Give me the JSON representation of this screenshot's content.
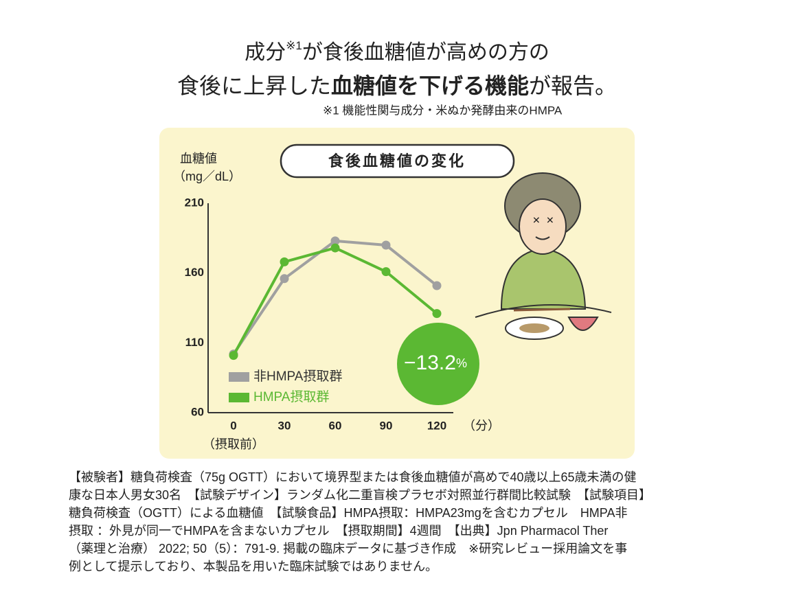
{
  "header": {
    "title_line1": [
      "成分",
      "※1",
      "が食後血糖値が高めの方の"
    ],
    "title_line2": [
      "食後に上昇した",
      "血糖値を下げる機能",
      "が報告。"
    ],
    "footnote": "※1 機能性関与成分・米ぬか発酵由来のHMPA"
  },
  "chart_data": {
    "type": "line",
    "title": "食後血糖値の変化",
    "y_label": [
      "血糖値",
      "（mg／dL）"
    ],
    "x_unit": "（分）",
    "x_sublabel": "（摂取前）",
    "x": [
      0,
      30,
      60,
      90,
      120
    ],
    "series": [
      {
        "name": "非HMPA摂取群",
        "color": "#a0a0a0",
        "values": [
          102,
          156,
          183,
          180,
          151
        ]
      },
      {
        "name": "HMPA摂取群",
        "color": "#5bb833",
        "values": [
          101,
          168,
          178,
          161,
          131
        ]
      }
    ],
    "xlim": [
      -15,
      135
    ],
    "ylim": [
      60,
      210
    ],
    "xticks": [
      0,
      30,
      60,
      90,
      120
    ],
    "yticks": [
      60,
      110,
      160,
      210
    ],
    "grid": false,
    "legend": "lower left",
    "annotation": {
      "text": "−13.2",
      "unit": "%",
      "color": "#5bb833"
    }
  },
  "notes": [
    "【被験者】糖負荷検査（75g OGTT）において境界型または食後血糖値が高めで40歳以上65歳未満の健",
    "康な日本人男女30名　【試験デザイン】ランダム化二重盲検プラセボ対照並行群間比較試験　【試験項目】",
    "糖負荷検査（OGTT）による血糖値　【試験食品】HMPA摂取：HMPA23mgを含むカプセル　HMPA非",
    "摂取 ：外見が同一でHMPAを含まないカプセル　【摂取期間】4週間　【出典】Jpn Pharmacol Ther",
    "（薬理と治療） 2022; 50（5）：791-9. 掲載の臨床データに基づき作成　※研究レビュー採用論文を事",
    "例として提示しており、本製品を用いた臨床試験ではありません。"
  ]
}
